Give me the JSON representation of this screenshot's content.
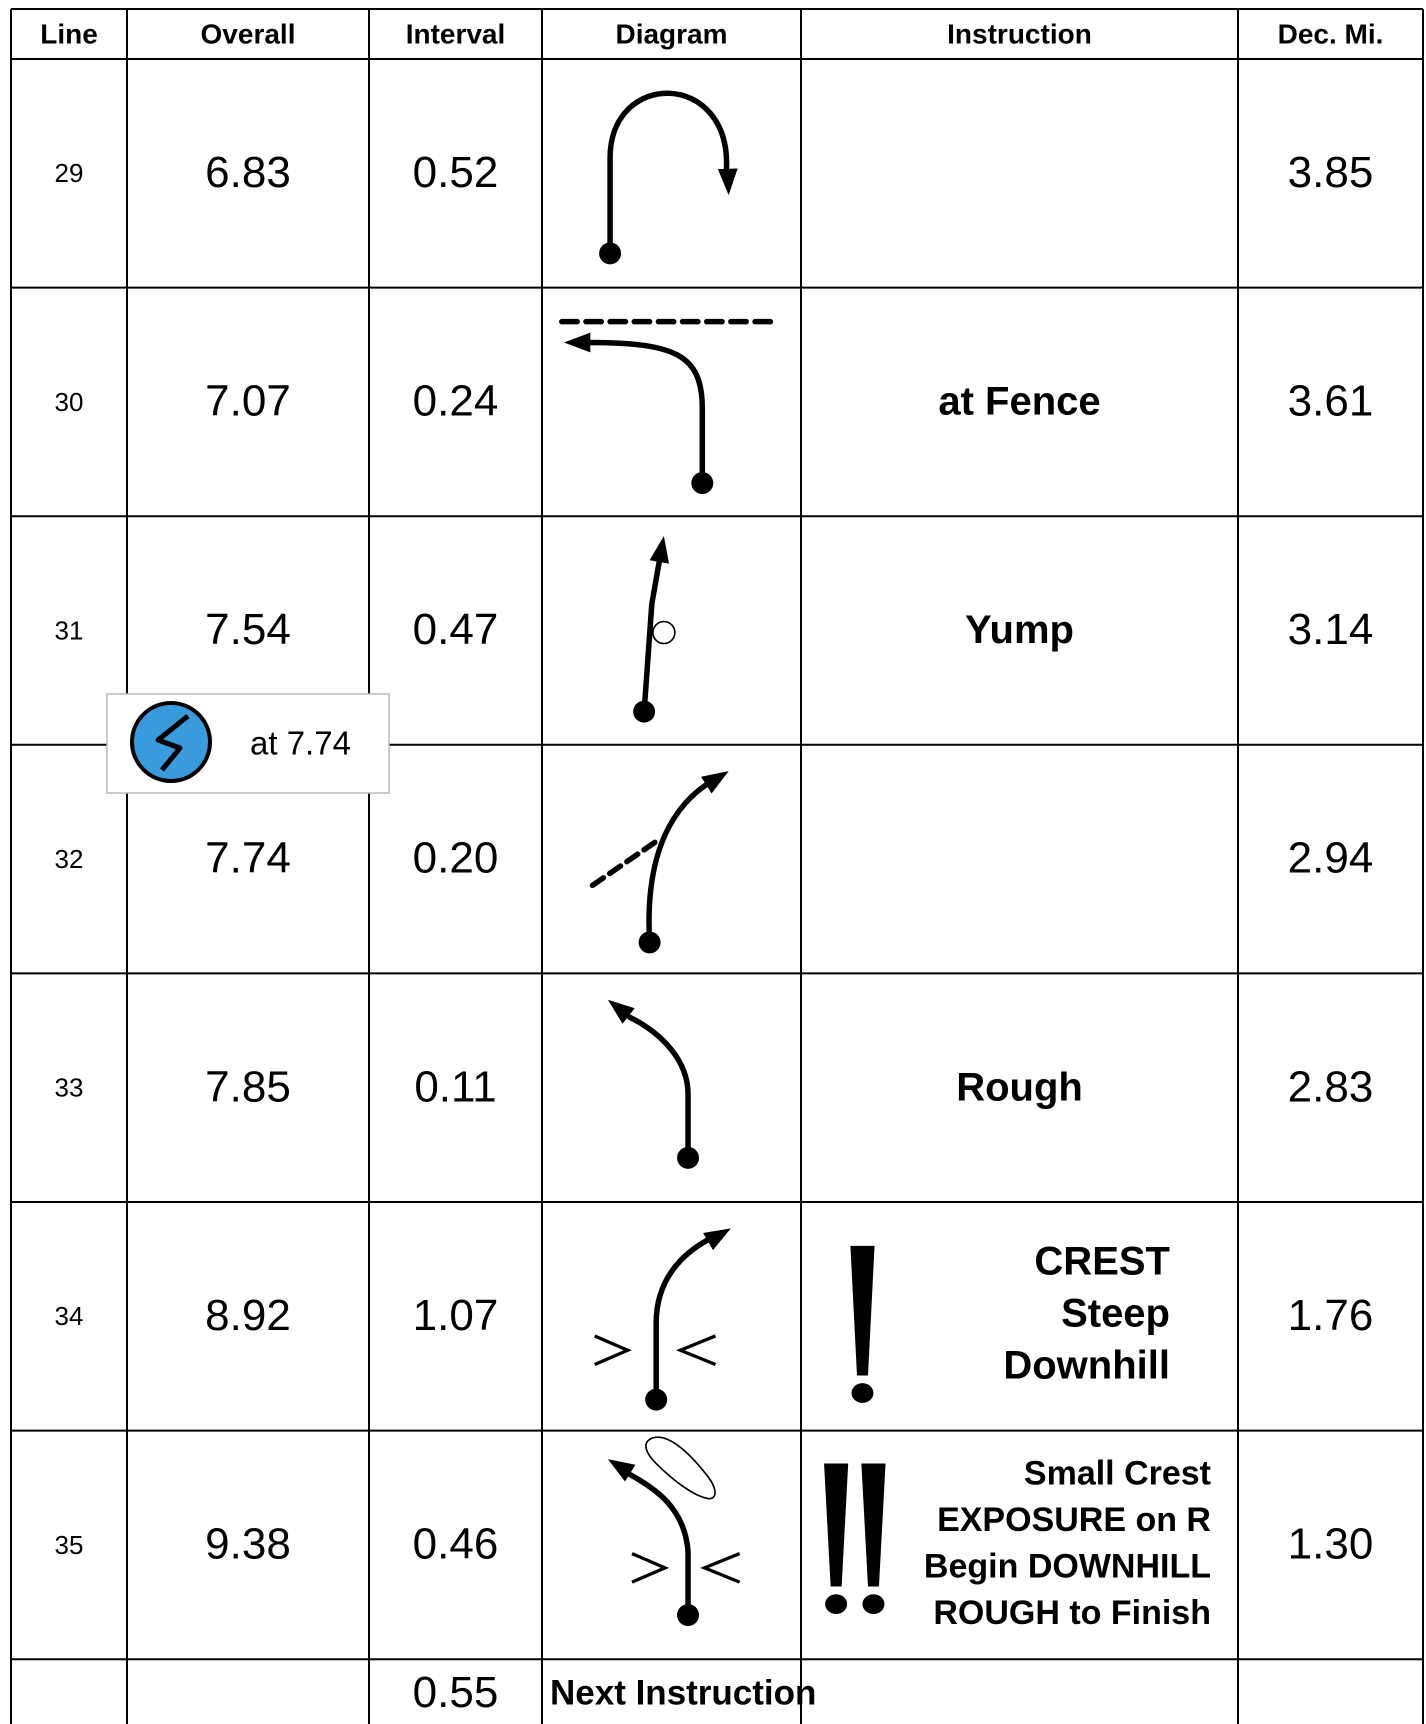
{
  "header": [
    "Line",
    "Overall",
    "Interval",
    "Diagram",
    "Instruction",
    "Dec. Mi."
  ],
  "rows": [
    {
      "line": "29",
      "overall": "6.83",
      "interval": "0.52",
      "dec": "3.85"
    },
    {
      "line": "30",
      "overall": "7.07",
      "interval": "0.24",
      "instruction": [
        "at Fence"
      ],
      "dec": "3.61"
    },
    {
      "line": "31",
      "overall": "7.54",
      "interval": "0.47",
      "instruction": [
        "Yump"
      ],
      "dec": "3.14"
    },
    {
      "line": "32",
      "overall": "7.74",
      "interval": "0.20",
      "dec": "2.94"
    },
    {
      "line": "33",
      "overall": "7.85",
      "interval": "0.11",
      "instruction": [
        "Rough"
      ],
      "dec": "2.83"
    },
    {
      "line": "34",
      "overall": "8.92",
      "interval": "1.07",
      "instruction": [
        "CREST",
        "Steep",
        "Downhill"
      ],
      "dec": "1.76"
    },
    {
      "line": "35",
      "overall": "9.38",
      "interval": "0.46",
      "instruction": [
        "Small Crest",
        "EXPOSURE on R",
        "Begin DOWNHILL",
        "ROUGH to Finish"
      ],
      "dec": "1.30"
    }
  ],
  "footer_row": {
    "interval": "0.55",
    "instruction": "Next Instruction"
  },
  "callout": {
    "text": "at 7.74"
  }
}
